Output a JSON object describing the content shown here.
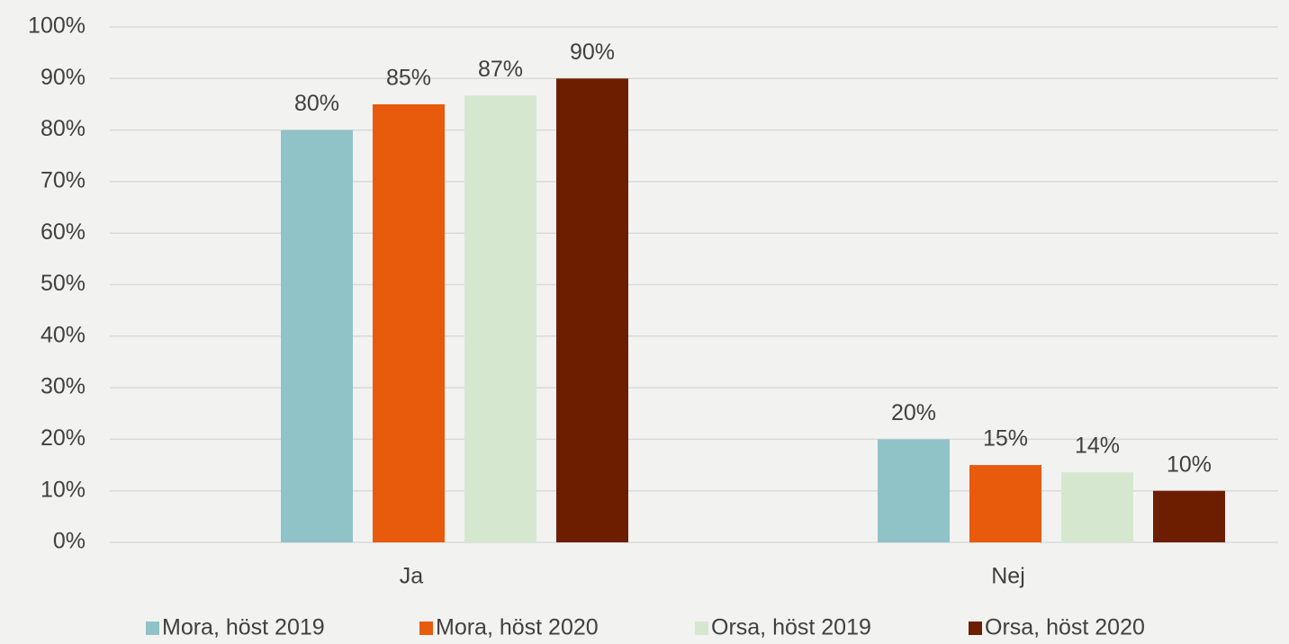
{
  "chart_data": {
    "type": "bar",
    "categories": [
      "Ja",
      "Nej"
    ],
    "series": [
      {
        "name": "Mora, höst 2019",
        "color": "#8fc3c8",
        "values": [
          80,
          20
        ],
        "value_labels": [
          "80%",
          "20%"
        ]
      },
      {
        "name": "Mora, höst 2020",
        "color": "#e85a0c",
        "values": [
          85,
          15
        ],
        "value_labels": [
          "85%",
          "15%"
        ]
      },
      {
        "name": "Orsa, höst 2019",
        "color": "#d5e8cf",
        "values": [
          86.7,
          13.6
        ],
        "value_labels": [
          "87%",
          "14%"
        ]
      },
      {
        "name": "Orsa, höst 2020",
        "color": "#6e1e00",
        "values": [
          90,
          10
        ],
        "value_labels": [
          "90%",
          "10%"
        ]
      }
    ],
    "ylim": [
      0,
      100
    ],
    "yticks": [
      {
        "value": 0,
        "label": "0%"
      },
      {
        "value": 10,
        "label": "10%"
      },
      {
        "value": 20,
        "label": "20%"
      },
      {
        "value": 30,
        "label": "30%"
      },
      {
        "value": 40,
        "label": "40%"
      },
      {
        "value": 50,
        "label": "50%"
      },
      {
        "value": 60,
        "label": "60%"
      },
      {
        "value": 70,
        "label": "70%"
      },
      {
        "value": 80,
        "label": "80%"
      },
      {
        "value": 90,
        "label": "90%"
      },
      {
        "value": 100,
        "label": "100%"
      }
    ],
    "grid": true,
    "legend": "bottom"
  }
}
